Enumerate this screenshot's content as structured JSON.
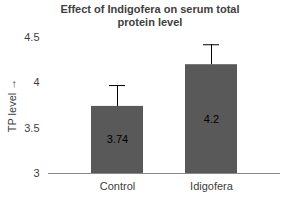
{
  "chart_data": {
    "type": "bar",
    "title": "Effect of Indigofera on serum total protein level",
    "y_label": "TP level",
    "categories": [
      "Control",
      "Idigofera"
    ],
    "values": [
      3.74,
      4.2
    ],
    "errors": [
      0.23,
      0.22
    ],
    "color": "#595959",
    "ylim": [
      3,
      4.5
    ],
    "yticks": [
      3,
      3.5,
      4,
      4.5
    ],
    "grid": false,
    "data_labels": true
  }
}
